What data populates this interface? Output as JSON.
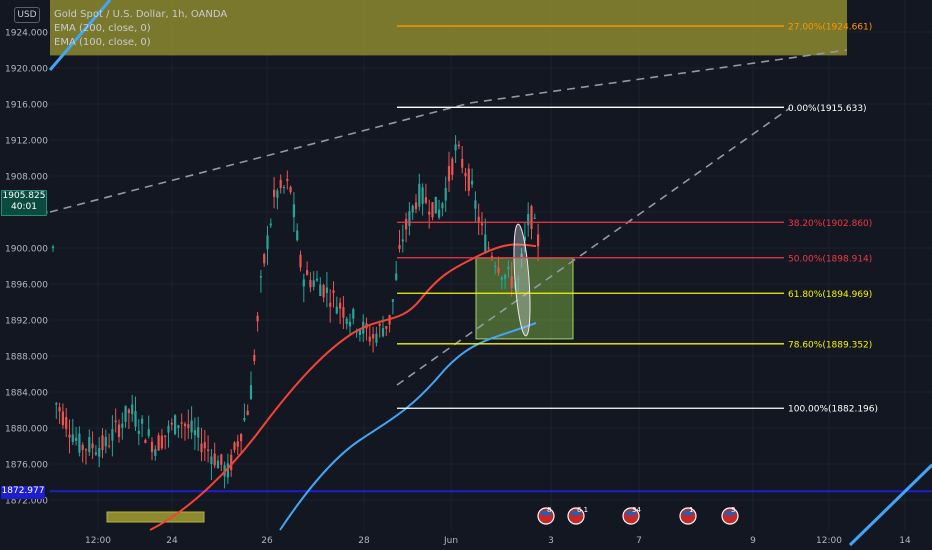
{
  "header": {
    "currency": "USD",
    "symbol_line": "Gold Spot / U.S. Dollar, 1h, OANDA",
    "ema1_label": "EMA (200, close, 0)",
    "ema2_label": "EMA (100, close, 0)"
  },
  "price_tags": {
    "current_price": "1905.825",
    "countdown": "40:01",
    "support_price": "1872.977"
  },
  "colors": {
    "background": "#131722",
    "up_candle": "#26a69a",
    "down_candle": "#ef5350",
    "ema200": "#42a5f5",
    "ema100": "#f44336",
    "support_line": "#1e1ecc",
    "fib_white": "#ffffff",
    "fib_red": "#f23645",
    "fib_yellow": "#f5f500",
    "fib_ext": "#ff9800",
    "zone_fill": "#8bc34a",
    "ext_zone": "#8d8a2e",
    "trendline": "#9598a1"
  },
  "chart_data": {
    "type": "candlestick",
    "symbol": "Gold Spot / U.S. Dollar",
    "timeframe": "1h",
    "y_range": [
      1868.5,
      1926.5
    ],
    "y_ticks": [
      "1924.000",
      "1920.000",
      "1916.000",
      "1912.000",
      "1908.000",
      "1904.000",
      "1900.000",
      "1896.000",
      "1892.000",
      "1888.000",
      "1884.000",
      "1880.000",
      "1876.000",
      "1872.000"
    ],
    "x_ticks": [
      "12:00",
      "24",
      "26",
      "28",
      "Jun",
      "3",
      "7",
      "9",
      "12:00",
      "14"
    ],
    "grid": true,
    "price_axis_side": "left",
    "fib_levels": [
      {
        "label": "27.00%(1924.661)",
        "price": 1924.661,
        "color": "#ff9800"
      },
      {
        "label": "0.00%(1915.633)",
        "price": 1915.633,
        "color": "#ffffff"
      },
      {
        "label": "38.20%(1902.860)",
        "price": 1902.86,
        "color": "#f23645"
      },
      {
        "label": "50.00%(1898.914)",
        "price": 1898.914,
        "color": "#f23645"
      },
      {
        "label": "61.80%(1894.969)",
        "price": 1894.969,
        "color": "#f5f500"
      },
      {
        "label": "78.60%(1889.352)",
        "price": 1889.352,
        "color": "#f5f500"
      },
      {
        "label": "100.00%(1882.196)",
        "price": 1882.196,
        "color": "#ffffff"
      }
    ],
    "support_level": 1872.977,
    "event_badges": [
      "8",
      "6 1",
      "34",
      "1",
      "3"
    ]
  }
}
